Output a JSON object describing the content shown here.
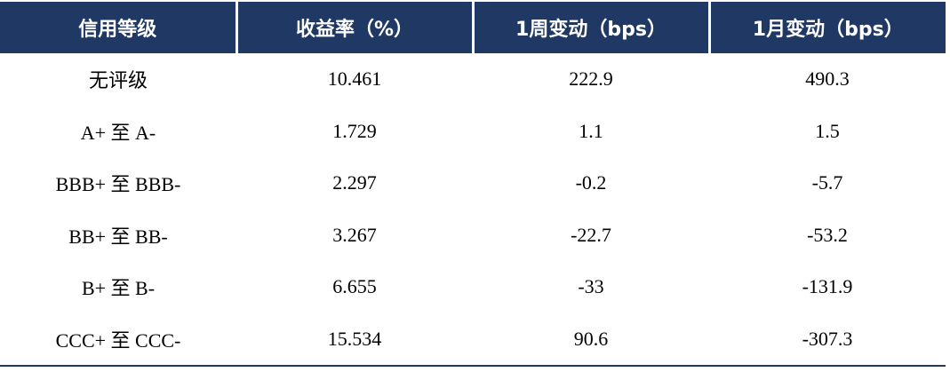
{
  "table": {
    "header": [
      "信用等级",
      "收益率（%）",
      "1周变动（bps）",
      "1月变动（bps）"
    ],
    "rows": [
      [
        "无评级",
        "10.461",
        "222.9",
        "490.3"
      ],
      [
        "A+ 至 A-",
        "1.729",
        "1.1",
        "1.5"
      ],
      [
        "BBB+ 至 BBB-",
        "2.297",
        "-0.2",
        "-5.7"
      ],
      [
        "BB+ 至 BB-",
        "3.267",
        "-22.7",
        "-53.2"
      ],
      [
        "B+ 至 B-",
        "6.655",
        "-33",
        "-131.9"
      ],
      [
        "CCC+ 至 CCC-",
        "15.534",
        "90.6",
        "-307.3"
      ]
    ]
  }
}
